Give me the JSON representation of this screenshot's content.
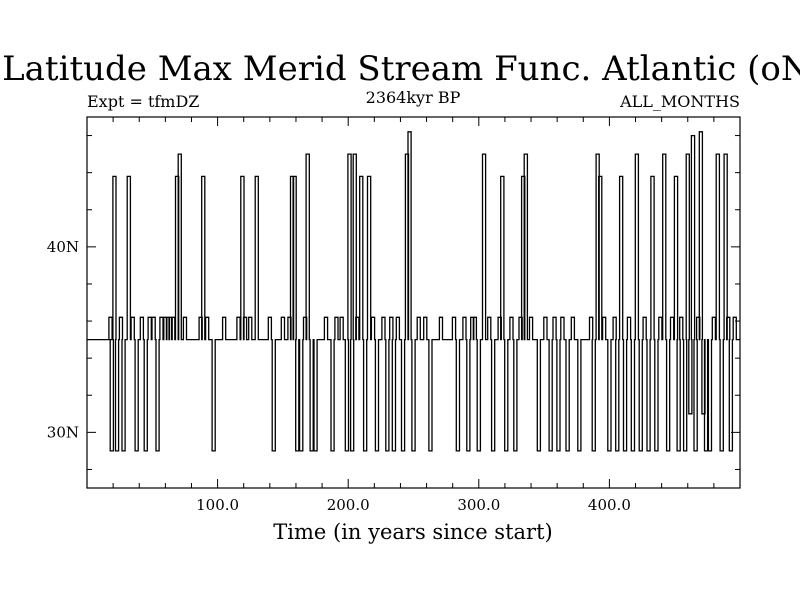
{
  "chart_data": {
    "type": "line",
    "title": "Latitude Max Merid Stream Func. Atlantic (oN)",
    "subtitle_left": "Expt = tfmDZ",
    "subtitle_center": "2364kyr BP",
    "subtitle_right": "ALL_MONTHS",
    "xlabel": "Time (in years since start)",
    "ylabel": "",
    "xlim": [
      0,
      500
    ],
    "ylim": [
      27,
      47
    ],
    "grid": false,
    "x_ticks": [
      {
        "value": 100,
        "label": "100.0"
      },
      {
        "value": 200,
        "label": "200.0"
      },
      {
        "value": 300,
        "label": "300.0"
      },
      {
        "value": 400,
        "label": "400.0"
      }
    ],
    "y_ticks": [
      {
        "value": 30,
        "label": "30N"
      },
      {
        "value": 40,
        "label": "40N"
      }
    ],
    "baseline": 35,
    "series": [
      {
        "events": [
          [
            18,
            36.2
          ],
          [
            19,
            29
          ],
          [
            21,
            43.8
          ],
          [
            23,
            29
          ],
          [
            26,
            36.2
          ],
          [
            28,
            29
          ],
          [
            32,
            43.8
          ],
          [
            35,
            36.2
          ],
          [
            38,
            29
          ],
          [
            42,
            36.2
          ],
          [
            45,
            29
          ],
          [
            48,
            36.2
          ],
          [
            51,
            36.2
          ],
          [
            54,
            29
          ],
          [
            57,
            36.2
          ],
          [
            60,
            36.2
          ],
          [
            62,
            36.2
          ],
          [
            64,
            36.2
          ],
          [
            66,
            36.2
          ],
          [
            69,
            43.8
          ],
          [
            71,
            45
          ],
          [
            75,
            36.2
          ],
          [
            87,
            36.2
          ],
          [
            89,
            43.8
          ],
          [
            92,
            36.2
          ],
          [
            97,
            29
          ],
          [
            105,
            36.2
          ],
          [
            116,
            36.2
          ],
          [
            119,
            43.8
          ],
          [
            121,
            36.2
          ],
          [
            125,
            36.2
          ],
          [
            130,
            43.8
          ],
          [
            140,
            36.2
          ],
          [
            143,
            29
          ],
          [
            150,
            36.2
          ],
          [
            155,
            36.2
          ],
          [
            157,
            43.8
          ],
          [
            159,
            43.8
          ],
          [
            161,
            29
          ],
          [
            164,
            29
          ],
          [
            167,
            36.2
          ],
          [
            169,
            45
          ],
          [
            172,
            29
          ],
          [
            175,
            29
          ],
          [
            183,
            36.2
          ],
          [
            188,
            29
          ],
          [
            191,
            36.2
          ],
          [
            195,
            36.2
          ],
          [
            199,
            29
          ],
          [
            201,
            45
          ],
          [
            203,
            29
          ],
          [
            205,
            45
          ],
          [
            207,
            36.2
          ],
          [
            210,
            43.8
          ],
          [
            213,
            29
          ],
          [
            216,
            43.8
          ],
          [
            219,
            36.2
          ],
          [
            222,
            29
          ],
          [
            227,
            36.2
          ],
          [
            230,
            29
          ],
          [
            233,
            36.2
          ],
          [
            235,
            29
          ],
          [
            238,
            36.2
          ],
          [
            242,
            29
          ],
          [
            245,
            45
          ],
          [
            247,
            46.2
          ],
          [
            250,
            29
          ],
          [
            254,
            36.2
          ],
          [
            259,
            36.2
          ],
          [
            263,
            29
          ],
          [
            271,
            36.2
          ],
          [
            281,
            36.2
          ],
          [
            284,
            29
          ],
          [
            289,
            36.2
          ],
          [
            292,
            29
          ],
          [
            295,
            36.2
          ],
          [
            297,
            36.2
          ],
          [
            300,
            29
          ],
          [
            304,
            45
          ],
          [
            308,
            36.2
          ],
          [
            311,
            29
          ],
          [
            316,
            36.2
          ],
          [
            318,
            43.8
          ],
          [
            321,
            29
          ],
          [
            325,
            36.2
          ],
          [
            328,
            29
          ],
          [
            332,
            36.2
          ],
          [
            334,
            43.8
          ],
          [
            336,
            45
          ],
          [
            340,
            36.2
          ],
          [
            346,
            29
          ],
          [
            351,
            36.2
          ],
          [
            355,
            29
          ],
          [
            358,
            36.2
          ],
          [
            361,
            29
          ],
          [
            364,
            36.2
          ],
          [
            368,
            29
          ],
          [
            372,
            36.2
          ],
          [
            377,
            29
          ],
          [
            386,
            36.2
          ],
          [
            388,
            29
          ],
          [
            391,
            45
          ],
          [
            393,
            43.8
          ],
          [
            396,
            36.2
          ],
          [
            400,
            29
          ],
          [
            404,
            36.2
          ],
          [
            406,
            29
          ],
          [
            409,
            43.8
          ],
          [
            412,
            29
          ],
          [
            415,
            36.2
          ],
          [
            418,
            29
          ],
          [
            421,
            45
          ],
          [
            424,
            29
          ],
          [
            427,
            36.2
          ],
          [
            430,
            29
          ],
          [
            433,
            43.8
          ],
          [
            436,
            29
          ],
          [
            439,
            36.2
          ],
          [
            442,
            45
          ],
          [
            445,
            29
          ],
          [
            448,
            36.2
          ],
          [
            451,
            43.8
          ],
          [
            453,
            29
          ],
          [
            455,
            36.2
          ],
          [
            458,
            29
          ],
          [
            460,
            45
          ],
          [
            462,
            31
          ],
          [
            464,
            46
          ],
          [
            466,
            29
          ],
          [
            468,
            36.2
          ],
          [
            470,
            46.2
          ],
          [
            472,
            31
          ],
          [
            474,
            29
          ],
          [
            477,
            29
          ],
          [
            480,
            36.2
          ],
          [
            483,
            45
          ],
          [
            486,
            29
          ],
          [
            489,
            45
          ],
          [
            491,
            36.2
          ],
          [
            493,
            29
          ],
          [
            496,
            36.2
          ]
        ]
      }
    ]
  }
}
